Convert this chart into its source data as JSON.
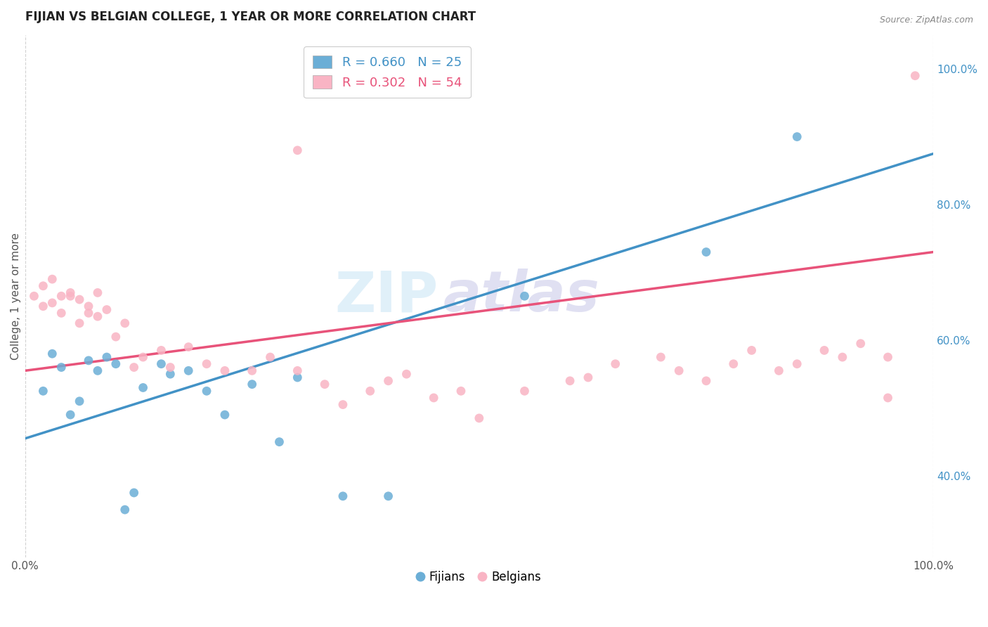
{
  "title": "FIJIAN VS BELGIAN COLLEGE, 1 YEAR OR MORE CORRELATION CHART",
  "source_text": "Source: ZipAtlas.com",
  "ylabel": "College, 1 year or more",
  "legend_label1": "Fijians",
  "legend_label2": "Belgians",
  "r1": 0.66,
  "n1": 25,
  "r2": 0.302,
  "n2": 54,
  "color1": "#6baed6",
  "color2": "#f9b4c4",
  "line_color1": "#4292c6",
  "line_color2": "#e8537a",
  "fijian_x": [
    0.02,
    0.03,
    0.04,
    0.05,
    0.06,
    0.07,
    0.08,
    0.09,
    0.1,
    0.11,
    0.12,
    0.13,
    0.15,
    0.16,
    0.18,
    0.2,
    0.22,
    0.25,
    0.28,
    0.3,
    0.35,
    0.4,
    0.55,
    0.75,
    0.85
  ],
  "fijian_y": [
    0.525,
    0.58,
    0.56,
    0.49,
    0.51,
    0.57,
    0.555,
    0.575,
    0.565,
    0.35,
    0.375,
    0.53,
    0.565,
    0.55,
    0.555,
    0.525,
    0.49,
    0.535,
    0.45,
    0.545,
    0.37,
    0.37,
    0.665,
    0.73,
    0.9
  ],
  "belgian_x": [
    0.01,
    0.02,
    0.02,
    0.03,
    0.03,
    0.04,
    0.04,
    0.05,
    0.05,
    0.06,
    0.06,
    0.07,
    0.07,
    0.08,
    0.08,
    0.09,
    0.1,
    0.11,
    0.12,
    0.13,
    0.15,
    0.16,
    0.18,
    0.2,
    0.22,
    0.25,
    0.27,
    0.3,
    0.33,
    0.35,
    0.38,
    0.4,
    0.42,
    0.45,
    0.48,
    0.5,
    0.55,
    0.6,
    0.62,
    0.65,
    0.7,
    0.72,
    0.75,
    0.78,
    0.8,
    0.83,
    0.85,
    0.88,
    0.9,
    0.92,
    0.95,
    0.98,
    0.3,
    0.95
  ],
  "belgian_y": [
    0.665,
    0.65,
    0.68,
    0.655,
    0.69,
    0.665,
    0.64,
    0.665,
    0.67,
    0.625,
    0.66,
    0.64,
    0.65,
    0.635,
    0.67,
    0.645,
    0.605,
    0.625,
    0.56,
    0.575,
    0.585,
    0.56,
    0.59,
    0.565,
    0.555,
    0.555,
    0.575,
    0.555,
    0.535,
    0.505,
    0.525,
    0.54,
    0.55,
    0.515,
    0.525,
    0.485,
    0.525,
    0.54,
    0.545,
    0.565,
    0.575,
    0.555,
    0.54,
    0.565,
    0.585,
    0.555,
    0.565,
    0.585,
    0.575,
    0.595,
    0.575,
    0.99,
    0.88,
    0.515
  ],
  "watermark_line1": "ZIP",
  "watermark_line2": "atlas",
  "background_color": "#ffffff",
  "grid_color": "#cccccc",
  "xlim": [
    0.0,
    1.0
  ],
  "ylim": [
    0.28,
    1.05
  ],
  "line1_x0": 0.0,
  "line1_y0": 0.455,
  "line1_x1": 1.0,
  "line1_y1": 0.875,
  "line2_x0": 0.0,
  "line2_y0": 0.555,
  "line2_x1": 1.0,
  "line2_y1": 0.73
}
